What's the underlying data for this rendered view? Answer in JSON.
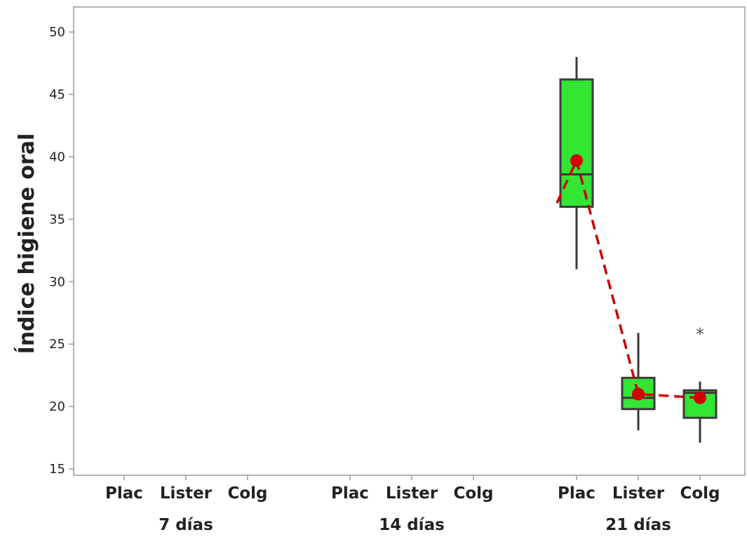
{
  "chart_data": {
    "type": "box",
    "title": "",
    "ylabel": "Índice higiene oral",
    "xlabel": "",
    "ylim": [
      14.5,
      52
    ],
    "yticks": [
      15,
      20,
      25,
      30,
      35,
      40,
      45,
      50
    ],
    "grid": false,
    "groups": [
      {
        "label": "7 días",
        "categories": [
          "Plac",
          "Lister",
          "Colg"
        ]
      },
      {
        "label": "14 días",
        "categories": [
          "Plac",
          "Lister",
          "Colg"
        ]
      },
      {
        "label": "21 días",
        "categories": [
          "Plac",
          "Lister",
          "Colg"
        ]
      }
    ],
    "boxes": [
      {
        "group": 2,
        "category": "Plac",
        "whisker_low": 31,
        "q1": 36,
        "median": 38.6,
        "q3": 46.2,
        "whisker_high": 48,
        "mean": 39.7,
        "outliers": []
      },
      {
        "group": 2,
        "category": "Lister",
        "whisker_low": 18.1,
        "q1": 19.8,
        "median": 20.7,
        "q3": 22.3,
        "whisker_high": 25.9,
        "mean": 21.0,
        "outliers": []
      },
      {
        "group": 2,
        "category": "Colg",
        "whisker_low": 17.1,
        "q1": 19.1,
        "median": 21.1,
        "q3": 21.3,
        "whisker_high": 22,
        "mean": 20.7,
        "outliers": [
          26.1
        ]
      }
    ],
    "colors": {
      "box_fill": "#33e633",
      "box_edge": "#3a3a3a",
      "mean": "#d40000",
      "mean_line": "#cc0000",
      "whisker": "#3a3a3a",
      "axis": "#9a9a9a"
    }
  }
}
